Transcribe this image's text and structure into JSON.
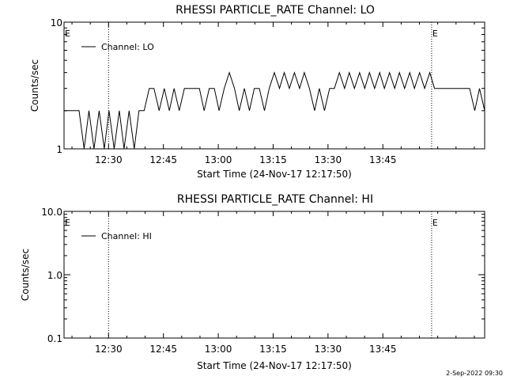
{
  "footer": {
    "timestamp": "2-Sep-2022 09:30"
  },
  "chart_data": [
    {
      "type": "line",
      "title": "RHESSI PARTICLE_RATE Channel: LO",
      "xlabel": "Start Time (24-Nov-17 12:17:50)",
      "ylabel": "Counts/sec",
      "xscale": "time-minutes",
      "xlim": [
        0,
        115
      ],
      "ylim": [
        1,
        10
      ],
      "yscale": "log",
      "x_ticks": [
        12.17,
        27.17,
        42.17,
        57.17,
        72.17,
        87.17
      ],
      "x_tick_labels": [
        "12:30",
        "12:45",
        "13:00",
        "13:15",
        "13:30",
        "13:45"
      ],
      "y_ticks": [
        1,
        10
      ],
      "y_tick_labels": [
        "1",
        "10"
      ],
      "event_lines": [
        {
          "x": 12.17,
          "label": ""
        },
        {
          "x": 100.5,
          "label": "E"
        },
        {
          "x": 115.0,
          "label": ""
        }
      ],
      "event_label_left": "E",
      "legend": {
        "label": "Channel: LO",
        "position": "top-left"
      },
      "grid": false,
      "series": [
        {
          "name": "Channel: LO",
          "x": [
            0,
            1.4,
            2.7,
            4.1,
            5.5,
            6.8,
            8.2,
            9.6,
            11,
            12.3,
            13.7,
            15.1,
            16.4,
            17.8,
            19.2,
            20.5,
            21.9,
            23.3,
            24.6,
            26,
            27.4,
            28.8,
            30.1,
            31.5,
            32.9,
            34.2,
            35.6,
            37,
            38.3,
            39.7,
            41.1,
            42.4,
            43.8,
            45.2,
            46.6,
            47.9,
            49.3,
            50.7,
            52,
            53.4,
            54.8,
            56.1,
            57.5,
            58.9,
            60.2,
            61.6,
            63,
            64.4,
            65.7,
            67.1,
            68.5,
            69.8,
            71.2,
            72.6,
            73.9,
            75.3,
            76.7,
            78,
            79.4,
            80.8,
            82.2,
            83.5,
            84.9,
            86.3,
            87.6,
            89,
            90.4,
            91.7,
            93.1,
            94.5,
            95.8,
            97.2,
            98.6,
            100,
            101.3,
            102.7,
            104.1,
            105.4,
            106.8,
            108.2,
            109.5,
            110.9,
            112.3,
            113.6,
            115
          ],
          "values": [
            2,
            2,
            2,
            2,
            1,
            2,
            1,
            2,
            1,
            2,
            1,
            2,
            1,
            2,
            1,
            2,
            2,
            3,
            3,
            2,
            3,
            2,
            3,
            2,
            3,
            3,
            3,
            3,
            2,
            3,
            3,
            2,
            3,
            4,
            3,
            2,
            3,
            2,
            3,
            3,
            2,
            3,
            4,
            3,
            4,
            3,
            4,
            3,
            4,
            3,
            2,
            3,
            2,
            3,
            3,
            4,
            3,
            4,
            3,
            4,
            3,
            4,
            3,
            4,
            3,
            4,
            3,
            4,
            3,
            4,
            3,
            4,
            3,
            4,
            3,
            3,
            3,
            3,
            3,
            3,
            3,
            3,
            2,
            3,
            2
          ]
        }
      ]
    },
    {
      "type": "line",
      "title": "RHESSI PARTICLE_RATE Channel: HI",
      "xlabel": "Start Time (24-Nov-17 12:17:50)",
      "ylabel": "Counts/sec",
      "xscale": "time-minutes",
      "xlim": [
        0,
        115
      ],
      "ylim": [
        0.1,
        10
      ],
      "yscale": "log",
      "x_ticks": [
        12.17,
        27.17,
        42.17,
        57.17,
        72.17,
        87.17
      ],
      "x_tick_labels": [
        "12:30",
        "12:45",
        "13:00",
        "13:15",
        "13:30",
        "13:45"
      ],
      "y_ticks": [
        0.1,
        1,
        10
      ],
      "y_tick_labels": [
        "0.1",
        "1.0",
        "10.0"
      ],
      "event_lines": [
        {
          "x": 12.17,
          "label": ""
        },
        {
          "x": 100.5,
          "label": "E"
        },
        {
          "x": 115.0,
          "label": ""
        }
      ],
      "event_label_left": "E",
      "legend": {
        "label": "Channel: HI",
        "position": "top-left"
      },
      "grid": false,
      "series": [
        {
          "name": "Channel: HI",
          "x": [],
          "values": []
        }
      ]
    }
  ]
}
